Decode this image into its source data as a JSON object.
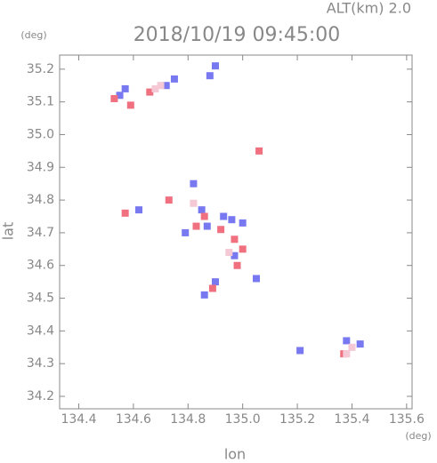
{
  "chart_data": {
    "type": "scatter",
    "title": "2018/10/19 09:45:00",
    "subtitle": "ALT(km) 2.0",
    "x_label": "lon",
    "y_label": "lat",
    "x_unit": "(deg)",
    "y_unit": "(deg)",
    "xlim": [
      134.33,
      135.62
    ],
    "ylim": [
      34.162,
      35.243
    ],
    "xticks": [
      134.4,
      134.6,
      134.8,
      {
        "value": 135.0,
        "label": "135.0"
      },
      135.2,
      135.4,
      135.6
    ],
    "yticks": [
      34.2,
      34.3,
      34.4,
      34.5,
      34.6,
      34.7,
      34.8,
      34.9,
      {
        "value": 35.0,
        "label": "35.0"
      },
      35.1,
      35.2
    ],
    "series": [
      {
        "color": "#7878f0",
        "x": [
          134.55,
          134.57,
          134.72,
          134.75,
          134.88,
          134.9,
          134.82,
          134.62,
          134.85,
          134.93,
          134.96,
          134.87,
          135.0,
          134.97,
          134.9,
          134.86,
          135.38,
          135.43,
          135.21,
          135.05,
          134.79
        ],
        "values": [
          35.12,
          35.14,
          35.15,
          35.17,
          35.18,
          35.21,
          34.85,
          34.77,
          34.77,
          34.75,
          34.74,
          34.72,
          34.73,
          34.63,
          34.55,
          34.51,
          34.37,
          34.36,
          34.34,
          34.56,
          34.7
        ]
      },
      {
        "color": "#f07080",
        "x": [
          134.53,
          134.59,
          134.66,
          134.57,
          134.73,
          134.86,
          134.92,
          134.97,
          135.0,
          134.98,
          134.89,
          135.06,
          135.37,
          134.83
        ],
        "values": [
          35.11,
          35.09,
          35.13,
          34.76,
          34.8,
          34.75,
          34.71,
          34.68,
          34.65,
          34.6,
          34.53,
          34.95,
          34.33,
          34.72
        ]
      },
      {
        "color": "#f4c8d4",
        "x": [
          134.7,
          134.68,
          135.38,
          135.4,
          134.95,
          134.82
        ],
        "values": [
          35.15,
          35.14,
          34.33,
          34.35,
          34.64,
          34.79
        ]
      }
    ]
  }
}
